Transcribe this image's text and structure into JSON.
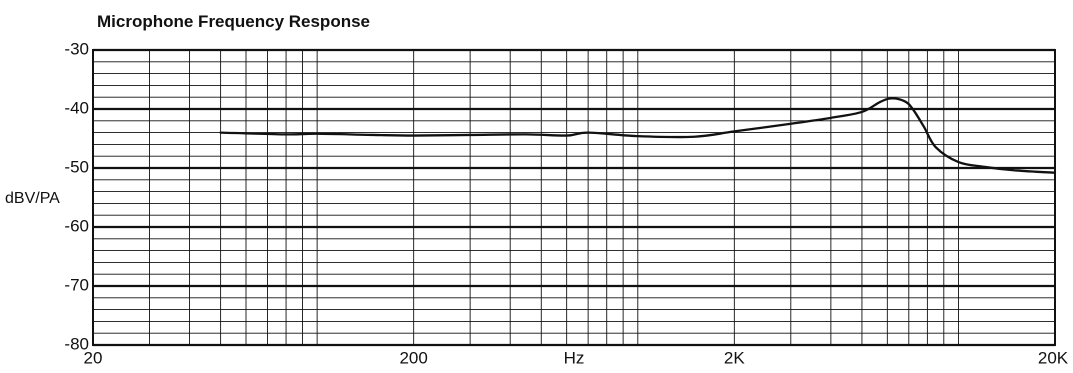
{
  "chart_data": {
    "type": "line",
    "title": "Microphone Frequency Response",
    "xlabel": "Hz",
    "ylabel": "dBV/PA",
    "x_scale": "log",
    "xlim": [
      20,
      20000
    ],
    "ylim": [
      -80,
      -30
    ],
    "x_ticks": [
      20,
      200,
      2000,
      20000
    ],
    "x_tick_labels": [
      "20",
      "200",
      "2K",
      "20K"
    ],
    "y_ticks": [
      -30,
      -40,
      -50,
      -60,
      -70,
      -80
    ],
    "y_tick_labels": [
      "-30",
      "-40",
      "-50",
      "-60",
      "-70",
      "-80"
    ],
    "grid": true,
    "series": [
      {
        "color": "#111111",
        "x": [
          50,
          80,
          100,
          150,
          200,
          300,
          450,
          600,
          700,
          1000,
          1500,
          2000,
          3000,
          4000,
          5000,
          5700,
          6200,
          6800,
          7200,
          7800,
          8500,
          10000,
          12000,
          15000,
          20000
        ],
        "y": [
          -44.0,
          -44.3,
          -44.2,
          -44.4,
          -44.5,
          -44.4,
          -44.3,
          -44.5,
          -44.0,
          -44.6,
          -44.7,
          -43.8,
          -42.5,
          -41.5,
          -40.5,
          -38.8,
          -38.2,
          -38.7,
          -40.0,
          -43.0,
          -46.5,
          -49.0,
          -49.8,
          -50.4,
          -50.8
        ]
      }
    ]
  }
}
